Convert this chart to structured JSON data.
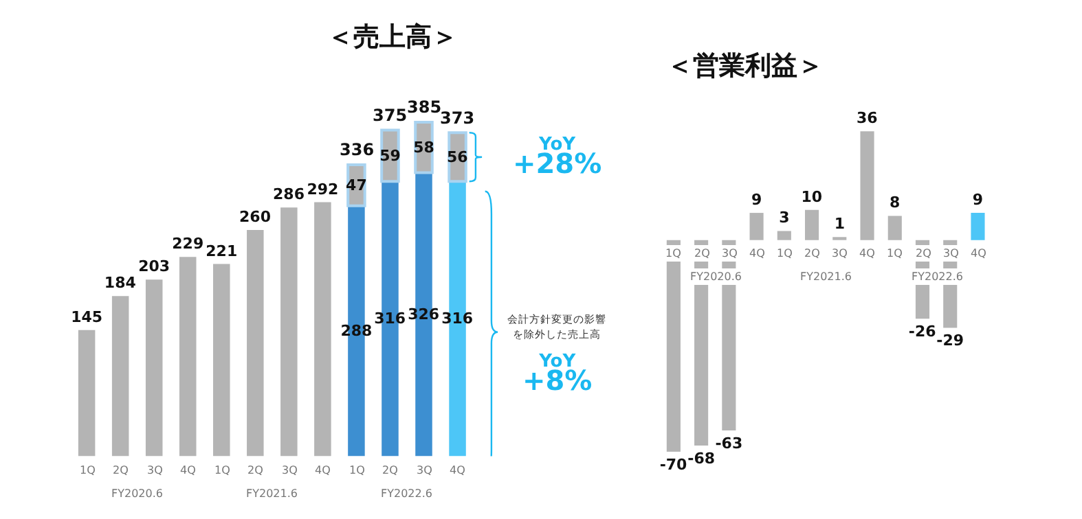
{
  "chart_data": [
    {
      "type": "bar",
      "title": "＜売上高＞",
      "stacked": true,
      "data_labels": true,
      "categories": [
        "1Q",
        "2Q",
        "3Q",
        "4Q",
        "1Q",
        "2Q",
        "3Q",
        "4Q",
        "1Q",
        "2Q",
        "3Q",
        "4Q"
      ],
      "series": [
        {
          "colors": [
            "#b4b4b4",
            "#b4b4b4",
            "#b4b4b4",
            "#b4b4b4",
            "#b4b4b4",
            "#b4b4b4",
            "#b4b4b4",
            "#b4b4b4",
            "#3d8fd1",
            "#3d8fd1",
            "#3d8fd1",
            "#4dc6f7"
          ],
          "values": [
            145,
            184,
            203,
            229,
            221,
            260,
            286,
            292,
            288,
            316,
            326,
            316
          ]
        },
        {
          "color": "#b4b4b4",
          "values": [
            null,
            null,
            null,
            null,
            null,
            null,
            null,
            null,
            47,
            59,
            58,
            56
          ]
        }
      ],
      "totals": [
        null,
        null,
        null,
        null,
        null,
        null,
        null,
        null,
        "336",
        "375",
        "385",
        "373"
      ],
      "annotations": [
        "FY2020.6",
        "FY2021.6",
        "FY2022.6",
        "YoY\n+28%",
        "会計方針変更の影響",
        "を除外した売上高",
        "YoY\n+8%"
      ]
    },
    {
      "type": "bar",
      "title": "＜営業利益＞",
      "data_labels": true,
      "categories": [
        "1Q",
        "2Q",
        "3Q",
        "4Q",
        "1Q",
        "2Q",
        "3Q",
        "4Q",
        "1Q",
        "2Q",
        "3Q",
        "4Q"
      ],
      "colors": [
        "#b4b4b4",
        "#b4b4b4",
        "#b4b4b4",
        "#b4b4b4",
        "#b4b4b4",
        "#b4b4b4",
        "#b4b4b4",
        "#b4b4b4",
        "#b4b4b4",
        "#b4b4b4",
        "#b4b4b4",
        "#4dc6f7"
      ],
      "values": [
        -70,
        -68,
        -63,
        9,
        3,
        10,
        1,
        36,
        8,
        -26,
        -29,
        9
      ],
      "annotations": [
        "FY2020.6",
        "FY2021.6",
        "FY2022.6"
      ]
    }
  ]
}
